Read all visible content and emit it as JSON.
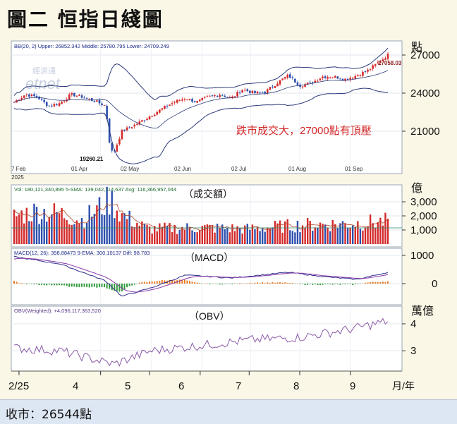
{
  "title": "圖二 恒指日綫圖",
  "footer": "收市：26544點",
  "colors": {
    "background": "#fbf7e6",
    "panel": "#ffffff",
    "up": "#d42a2a",
    "down": "#2c4fae",
    "bollinger": "#2a3a7a",
    "macd": "#2a2a8a",
    "signal": "#8a3aa8",
    "hist_up": "#e57a22",
    "hist_down": "#2e9a3a",
    "obv": "#8a5aa8",
    "sma": "#b04a2a",
    "avg_line": "#2a8a6a",
    "annotation": "#d42a2a",
    "footer_bg": "#dde7f3"
  },
  "price_panel": {
    "header": "BB(20, 2)   Upper: 26852.342  Middle: 25780.795  Lower: 24709.249",
    "unit": "點",
    "annotation": "跌市成交大，27000點有頂壓",
    "high_label": "27058.03",
    "low_label": "19260.21",
    "watermark_small": "經濟通",
    "watermark_big": "etnet",
    "date_labels": [
      "7 Feb",
      "01 Apr",
      "02 May",
      "02 Jun",
      "02 Jul",
      "01 Aug",
      "01 Sep"
    ],
    "year_label": "2025"
  },
  "volume_panel": {
    "header": "Vol: 180,121,340,895  5-SMA: 139,042,114,637  Avg: 116,366,957,044",
    "unit": "億",
    "label": "（成交額）"
  },
  "macd_panel": {
    "header": "MACD(12, 26): 398.88473  9-EMA: 300.10137  Diff: 98.783",
    "label": "（MACD）"
  },
  "obv_panel": {
    "header": "OBV(Weighted): +4,096,117,363,520",
    "unit": "萬億",
    "label": "（OBV）"
  },
  "x_axis": {
    "ticks": [
      "2/25",
      "4",
      "5",
      "6",
      "7",
      "8",
      "9"
    ],
    "unit": "月/年"
  },
  "chart_data": [
    {
      "type": "candlestick",
      "panel": "price",
      "ylabel": "點",
      "ylim": [
        18000,
        28000
      ],
      "yticks": [
        21000,
        24000,
        27000
      ],
      "bollinger": {
        "period": 20,
        "std": 2,
        "upper": 26852.342,
        "middle": 25780.795,
        "lower": 24709.249
      },
      "annotations": [
        {
          "text": "27058.03",
          "value": 27058.03
        },
        {
          "text": "19260.21",
          "value": 19260.21
        },
        {
          "text": "跌市成交大，27000點有頂壓"
        }
      ],
      "close_path": [
        {
          "date": "2025-02-07",
          "close": 23300
        },
        {
          "date": "2025-02-14",
          "close": 23900
        },
        {
          "date": "2025-02-21",
          "close": 23700
        },
        {
          "date": "2025-02-28",
          "close": 23000
        },
        {
          "date": "2025-03-07",
          "close": 23200
        },
        {
          "date": "2025-03-14",
          "close": 23900
        },
        {
          "date": "2025-03-21",
          "close": 23700
        },
        {
          "date": "2025-03-28",
          "close": 23400
        },
        {
          "date": "2025-04-04",
          "close": 23000
        },
        {
          "date": "2025-04-07",
          "close": 19500
        },
        {
          "date": "2025-04-09",
          "close": 19300
        },
        {
          "date": "2025-04-14",
          "close": 21000
        },
        {
          "date": "2025-04-22",
          "close": 21500
        },
        {
          "date": "2025-04-30",
          "close": 22100
        },
        {
          "date": "2025-05-09",
          "close": 22800
        },
        {
          "date": "2025-05-16",
          "close": 23300
        },
        {
          "date": "2025-05-23",
          "close": 23600
        },
        {
          "date": "2025-05-30",
          "close": 23300
        },
        {
          "date": "2025-06-06",
          "close": 23700
        },
        {
          "date": "2025-06-13",
          "close": 23900
        },
        {
          "date": "2025-06-20",
          "close": 23600
        },
        {
          "date": "2025-06-27",
          "close": 24300
        },
        {
          "date": "2025-07-04",
          "close": 24000
        },
        {
          "date": "2025-07-11",
          "close": 24100
        },
        {
          "date": "2025-07-18",
          "close": 24800
        },
        {
          "date": "2025-07-25",
          "close": 25400
        },
        {
          "date": "2025-08-01",
          "close": 24600
        },
        {
          "date": "2025-08-08",
          "close": 24800
        },
        {
          "date": "2025-08-15",
          "close": 25300
        },
        {
          "date": "2025-08-22",
          "close": 25300
        },
        {
          "date": "2025-08-29",
          "close": 25100
        },
        {
          "date": "2025-09-05",
          "close": 25400
        },
        {
          "date": "2025-09-12",
          "close": 25800
        },
        {
          "date": "2025-09-19",
          "close": 26500
        },
        {
          "date": "2025-09-24",
          "close": 27000
        }
      ]
    },
    {
      "type": "bar",
      "panel": "volume",
      "ylabel": "億",
      "ylim": [
        0,
        4000
      ],
      "yticks": [
        1000,
        2000,
        3000
      ],
      "series": [
        {
          "name": "Vol",
          "last": 180121340895
        },
        {
          "name": "5-SMA",
          "last": 139042114637
        },
        {
          "name": "Avg",
          "last": 116366957044
        }
      ],
      "values_approx": [
        {
          "date": "2025-02-07",
          "value": 2200
        },
        {
          "date": "2025-02-21",
          "value": 2600
        },
        {
          "date": "2025-03-07",
          "value": 2400
        },
        {
          "date": "2025-03-21",
          "value": 1900
        },
        {
          "date": "2025-04-07",
          "value": 3500
        },
        {
          "date": "2025-04-14",
          "value": 2300
        },
        {
          "date": "2025-04-30",
          "value": 1200
        },
        {
          "date": "2025-05-30",
          "value": 1300
        },
        {
          "date": "2025-06-30",
          "value": 1200
        },
        {
          "date": "2025-07-31",
          "value": 1500
        },
        {
          "date": "2025-08-29",
          "value": 1600
        },
        {
          "date": "2025-09-24",
          "value": 1800
        }
      ]
    },
    {
      "type": "line",
      "panel": "macd",
      "ylim": [
        -700,
        1200
      ],
      "yticks": [
        0,
        1000
      ],
      "series": [
        {
          "name": "MACD(12, 26)",
          "last": 398.88473
        },
        {
          "name": "9-EMA",
          "last": 300.10137
        },
        {
          "name": "Diff",
          "last": 98.783
        }
      ],
      "macd_path": [
        {
          "date": "2025-02-07",
          "value": 950
        },
        {
          "date": "2025-03-07",
          "value": 700
        },
        {
          "date": "2025-04-04",
          "value": 100
        },
        {
          "date": "2025-04-14",
          "value": -450
        },
        {
          "date": "2025-05-02",
          "value": -150
        },
        {
          "date": "2025-05-23",
          "value": 300
        },
        {
          "date": "2025-06-20",
          "value": 200
        },
        {
          "date": "2025-07-25",
          "value": 400
        },
        {
          "date": "2025-08-15",
          "value": 250
        },
        {
          "date": "2025-09-05",
          "value": 150
        },
        {
          "date": "2025-09-24",
          "value": 398.88
        }
      ]
    },
    {
      "type": "line",
      "panel": "obv",
      "ylabel": "萬億",
      "ylim": [
        2.3,
        4.6
      ],
      "yticks": [
        3,
        4
      ],
      "series": [
        {
          "name": "OBV(Weighted)",
          "last": 4096117363520
        }
      ],
      "obv_path": [
        {
          "date": "2025-02-07",
          "value": 3.1
        },
        {
          "date": "2025-03-07",
          "value": 3.0
        },
        {
          "date": "2025-04-09",
          "value": 2.5
        },
        {
          "date": "2025-05-02",
          "value": 3.0
        },
        {
          "date": "2025-06-02",
          "value": 3.2
        },
        {
          "date": "2025-07-02",
          "value": 3.4
        },
        {
          "date": "2025-08-01",
          "value": 3.5
        },
        {
          "date": "2025-09-01",
          "value": 3.8
        },
        {
          "date": "2025-09-24",
          "value": 4.1
        }
      ]
    }
  ]
}
